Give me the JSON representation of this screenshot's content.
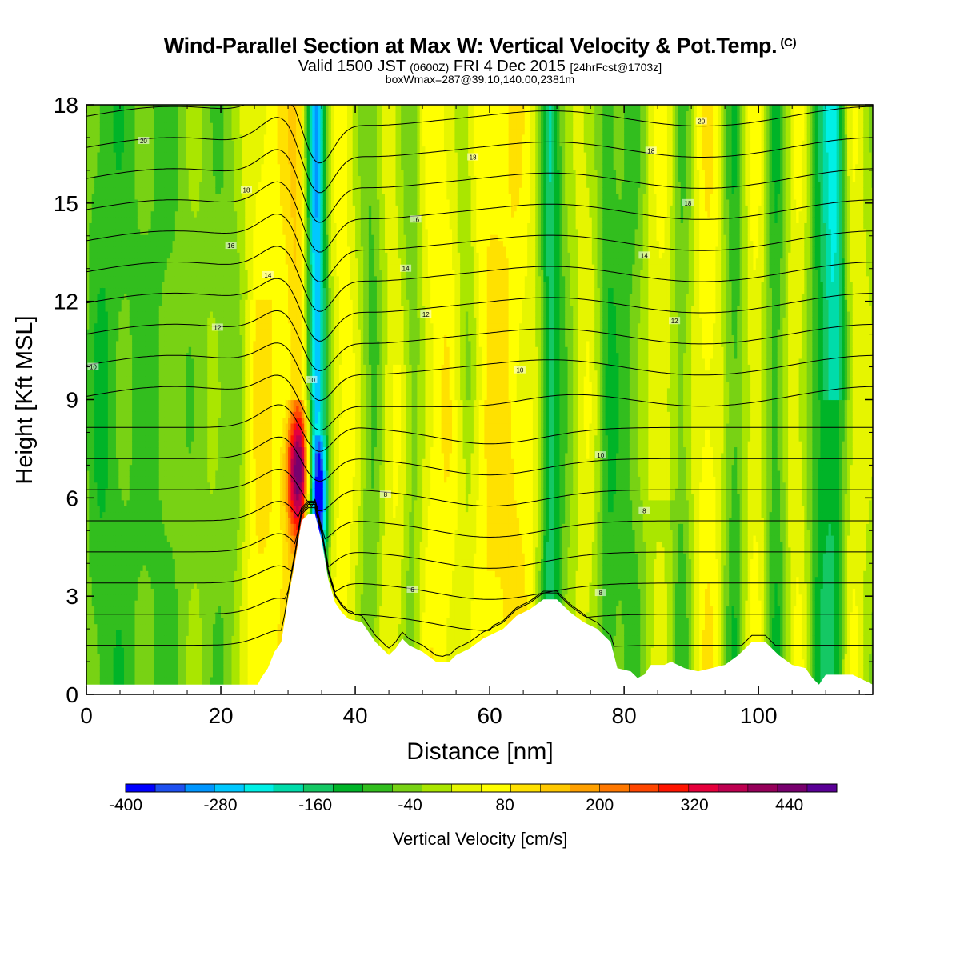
{
  "header": {
    "title": "Wind-Parallel Section at Max W: Vertical Velocity & Pot.Temp.",
    "title_mark": "(C)",
    "valid_prefix": "Valid 1500 JST",
    "valid_utc": "(0600Z)",
    "valid_date": "FRI 4 Dec 2015",
    "forecast_tag": "[24hrFcst@1703z]",
    "box_info": "boxWmax=287@39.10,140.00,2381m"
  },
  "chart_data": {
    "type": "heatmap",
    "xlabel": "Distance [nm]",
    "ylabel": "Height [Kft MSL]",
    "xlim": [
      0,
      117
    ],
    "ylim": [
      0,
      18
    ],
    "x_ticks": [
      0,
      20,
      40,
      60,
      80,
      100
    ],
    "y_ticks": [
      0,
      3,
      6,
      9,
      12,
      15,
      18
    ],
    "colorbar": {
      "label": "Vertical Velocity [cm/s]",
      "min": -400,
      "max": 500,
      "step": 40,
      "tick_labels": [
        -400,
        -280,
        -160,
        -40,
        80,
        200,
        320,
        440
      ],
      "colors": [
        "#0000ff",
        "#1e50f0",
        "#0096ff",
        "#00c8ff",
        "#00f0e6",
        "#00dcaa",
        "#14c864",
        "#00b428",
        "#32be1e",
        "#78d214",
        "#aae600",
        "#e6f500",
        "#ffff00",
        "#ffe100",
        "#ffc800",
        "#ffa000",
        "#ff7800",
        "#ff4600",
        "#ff1400",
        "#e6003c",
        "#be0050",
        "#96005a",
        "#78006e",
        "#5a0096"
      ]
    },
    "terrain_kft": [
      [
        0,
        0.3
      ],
      [
        25.5,
        0.3
      ],
      [
        26,
        0.5
      ],
      [
        27,
        0.8
      ],
      [
        28,
        1.3
      ],
      [
        29,
        1.6
      ],
      [
        30,
        2.9
      ],
      [
        31,
        4.0
      ],
      [
        32,
        5.3
      ],
      [
        33,
        5.5
      ],
      [
        34,
        5.5
      ],
      [
        35,
        4.7
      ],
      [
        36,
        3.5
      ],
      [
        37,
        2.8
      ],
      [
        38,
        2.5
      ],
      [
        39,
        2.3
      ],
      [
        41,
        2.2
      ],
      [
        42,
        1.9
      ],
      [
        43,
        1.6
      ],
      [
        44,
        1.4
      ],
      [
        45,
        1.2
      ],
      [
        46,
        1.4
      ],
      [
        47,
        1.7
      ],
      [
        48,
        1.5
      ],
      [
        49,
        1.4
      ],
      [
        50,
        1.3
      ],
      [
        52,
        1.0
      ],
      [
        54,
        1.0
      ],
      [
        55,
        1.2
      ],
      [
        57,
        1.4
      ],
      [
        59,
        1.7
      ],
      [
        62,
        2.0
      ],
      [
        64,
        2.4
      ],
      [
        66,
        2.6
      ],
      [
        68,
        2.9
      ],
      [
        70,
        2.9
      ],
      [
        72,
        2.5
      ],
      [
        74,
        2.2
      ],
      [
        76,
        2.0
      ],
      [
        78,
        1.6
      ],
      [
        79,
        0.8
      ],
      [
        81,
        0.7
      ],
      [
        82,
        0.5
      ],
      [
        83,
        0.6
      ],
      [
        84,
        0.9
      ],
      [
        86,
        0.9
      ],
      [
        87,
        1.0
      ],
      [
        89,
        0.8
      ],
      [
        91,
        0.7
      ],
      [
        93,
        0.8
      ],
      [
        95,
        0.9
      ],
      [
        97,
        1.2
      ],
      [
        99,
        1.6
      ],
      [
        101,
        1.6
      ],
      [
        103,
        1.2
      ],
      [
        105,
        0.9
      ],
      [
        107,
        0.8
      ],
      [
        108,
        0.5
      ],
      [
        109,
        0.3
      ],
      [
        110,
        0.6
      ],
      [
        112,
        0.6
      ],
      [
        114,
        0.6
      ],
      [
        115,
        0.5
      ],
      [
        117,
        0.3
      ]
    ],
    "theta_contour_labels": [
      {
        "value": "20",
        "x": 8.5,
        "y": 16.9
      },
      {
        "value": "18",
        "x": 23.8,
        "y": 15.4
      },
      {
        "value": "16",
        "x": 21.5,
        "y": 13.7
      },
      {
        "value": "14",
        "x": 27,
        "y": 12.8
      },
      {
        "value": "12",
        "x": 19.5,
        "y": 11.2
      },
      {
        "value": "10",
        "x": 1,
        "y": 10.0
      },
      {
        "value": "10",
        "x": 33.5,
        "y": 9.6
      },
      {
        "value": "18",
        "x": 57.5,
        "y": 16.4
      },
      {
        "value": "16",
        "x": 49,
        "y": 14.5
      },
      {
        "value": "14",
        "x": 47.5,
        "y": 13.0
      },
      {
        "value": "12",
        "x": 50.5,
        "y": 11.6
      },
      {
        "value": "10",
        "x": 64.5,
        "y": 9.9
      },
      {
        "value": "8",
        "x": 44.5,
        "y": 6.1
      },
      {
        "value": "6",
        "x": 48.5,
        "y": 3.2
      },
      {
        "value": "20",
        "x": 91.5,
        "y": 17.5
      },
      {
        "value": "18",
        "x": 84,
        "y": 16.6
      },
      {
        "value": "18",
        "x": 89.5,
        "y": 15.0
      },
      {
        "value": "14",
        "x": 83,
        "y": 13.4
      },
      {
        "value": "12",
        "x": 87.5,
        "y": 11.4
      },
      {
        "value": "10",
        "x": 76.5,
        "y": 7.3
      },
      {
        "value": "8",
        "x": 83,
        "y": 5.6
      },
      {
        "value": "8",
        "x": 76.5,
        "y": 3.1
      }
    ]
  }
}
